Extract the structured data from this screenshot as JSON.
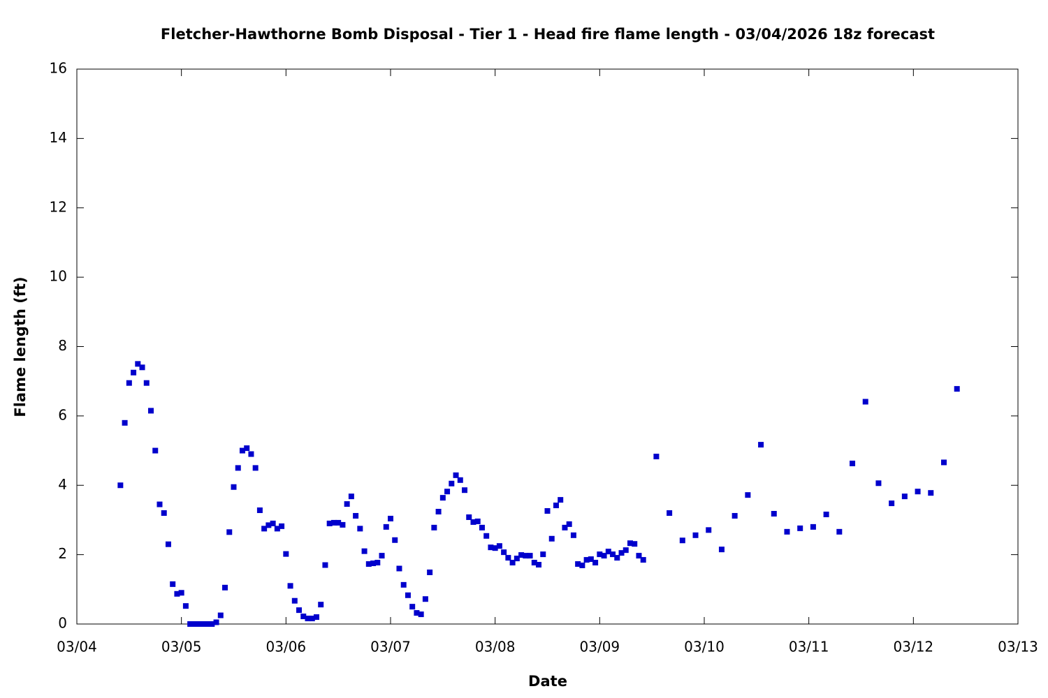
{
  "chart_data": {
    "type": "scatter",
    "title": "Fletcher-Hawthorne Bomb Disposal - Tier 1 - Head fire flame length - 03/04/2026 18z forecast",
    "xlabel": "Date",
    "ylabel": "Flame length (ft)",
    "xlim": [
      0,
      216
    ],
    "xticks": [
      {
        "value": 0,
        "label": "03/04"
      },
      {
        "value": 24,
        "label": "03/05"
      },
      {
        "value": 48,
        "label": "03/06"
      },
      {
        "value": 72,
        "label": "03/07"
      },
      {
        "value": 96,
        "label": "03/08"
      },
      {
        "value": 120,
        "label": "03/09"
      },
      {
        "value": 144,
        "label": "03/10"
      },
      {
        "value": 168,
        "label": "03/11"
      },
      {
        "value": 192,
        "label": "03/12"
      },
      {
        "value": 216,
        "label": "03/13"
      }
    ],
    "ylim": [
      0,
      16
    ],
    "yticks": [
      0,
      2,
      4,
      6,
      8,
      10,
      12,
      14,
      16
    ],
    "series": [
      {
        "color": "#0000cc",
        "x": [
          10,
          11,
          12,
          13,
          14,
          15,
          16,
          17,
          18,
          19,
          20,
          21,
          22,
          23,
          24,
          25,
          26,
          27,
          28,
          29,
          30,
          31,
          32,
          33,
          34,
          35,
          36,
          37,
          38,
          39,
          40,
          41,
          42,
          43,
          44,
          45,
          46,
          47,
          48,
          49,
          50,
          51,
          52,
          53,
          54,
          55,
          56,
          57,
          58,
          59,
          60,
          61,
          62,
          63,
          64,
          65,
          66,
          67,
          68,
          69,
          70,
          71,
          72,
          73,
          74,
          75,
          76,
          77,
          78,
          79,
          80,
          81,
          82,
          83,
          84,
          85,
          86,
          87,
          88,
          89,
          90,
          91,
          92,
          93,
          94,
          95,
          96,
          97,
          98,
          99,
          100,
          101,
          102,
          103,
          104,
          105,
          106,
          107,
          108,
          109,
          110,
          111,
          112,
          113,
          114,
          115,
          116,
          117,
          118,
          119,
          120,
          121,
          122,
          123,
          124,
          125,
          126,
          127,
          128,
          129,
          130,
          133,
          136,
          139,
          142,
          145,
          148,
          151,
          154,
          157,
          160,
          163,
          166,
          169,
          172,
          175,
          178,
          181,
          184,
          187,
          190,
          193,
          196,
          199,
          202
        ],
        "values": [
          4.0,
          5.8,
          6.95,
          7.25,
          7.5,
          7.4,
          6.95,
          6.15,
          5.0,
          3.45,
          3.2,
          2.3,
          1.15,
          0.87,
          0.9,
          0.52,
          0,
          0,
          0,
          0,
          0,
          0,
          0.05,
          0.25,
          1.05,
          2.65,
          3.95,
          4.5,
          5.0,
          5.07,
          4.9,
          4.5,
          3.28,
          2.75,
          2.85,
          2.9,
          2.75,
          2.82,
          2.02,
          1.1,
          0.67,
          0.4,
          0.22,
          0.16,
          0.16,
          0.2,
          0.56,
          1.7,
          2.9,
          2.92,
          2.92,
          2.86,
          3.46,
          3.68,
          3.12,
          2.75,
          2.1,
          1.73,
          1.75,
          1.77,
          1.97,
          2.8,
          3.04,
          2.42,
          1.6,
          1.13,
          0.83,
          0.5,
          0.32,
          0.28,
          0.72,
          1.49,
          2.78,
          3.24,
          3.64,
          3.82,
          4.05,
          4.29,
          4.15,
          3.86,
          3.08,
          2.94,
          2.96,
          2.78,
          2.54,
          2.21,
          2.19,
          2.25,
          2.07,
          1.91,
          1.77,
          1.89,
          1.99,
          1.97,
          1.97,
          1.77,
          1.71,
          2.01,
          3.26,
          2.46,
          3.42,
          3.58,
          2.78,
          2.88,
          2.56,
          1.73,
          1.69,
          1.85,
          1.87,
          1.77,
          2.01,
          1.97,
          2.09,
          2.01,
          1.91,
          2.05,
          2.13,
          2.33,
          2.31,
          1.97,
          1.85,
          4.83,
          3.2,
          2.41,
          2.56,
          2.71,
          2.15,
          3.12,
          3.72,
          5.17,
          3.18,
          2.66,
          2.76,
          2.8,
          3.16,
          2.66,
          4.63,
          6.41,
          4.06,
          3.48,
          3.68,
          3.82,
          3.78,
          4.66,
          6.78
        ]
      }
    ]
  }
}
